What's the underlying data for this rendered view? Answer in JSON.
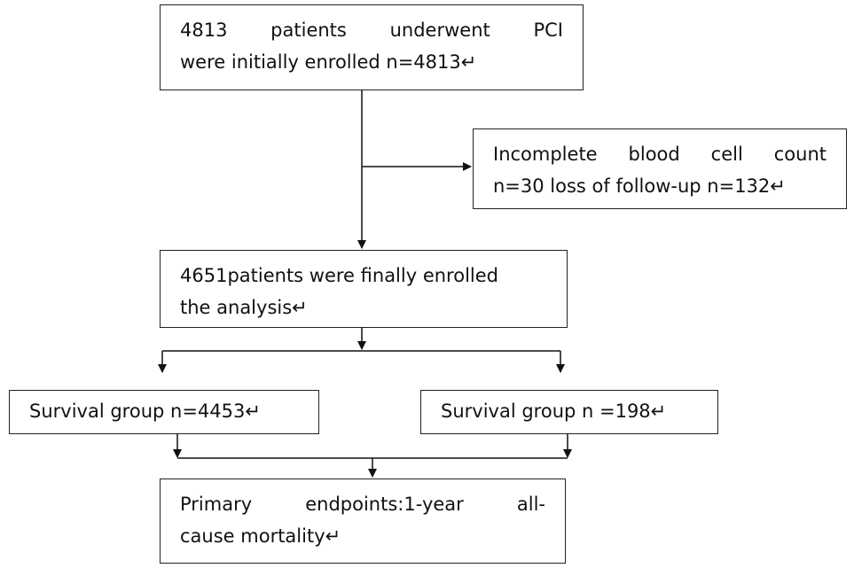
{
  "nodes": [
    {
      "lines": [
        "4813 patients underwent PCI",
        "were initially enrolled n=4813↵"
      ]
    },
    {
      "lines": [
        "Incomplete blood cell count",
        "n=30 loss of follow-up n=132↵"
      ]
    },
    {
      "lines": [
        "4651patients were finally enrolled",
        "the analysis↵"
      ]
    },
    {
      "lines": [
        "Survival group n=4453↵"
      ]
    },
    {
      "lines": [
        "Survival group n =198↵"
      ]
    },
    {
      "lines": [
        "Primary endpoints:1-year all-",
        "cause mortality↵"
      ]
    }
  ]
}
